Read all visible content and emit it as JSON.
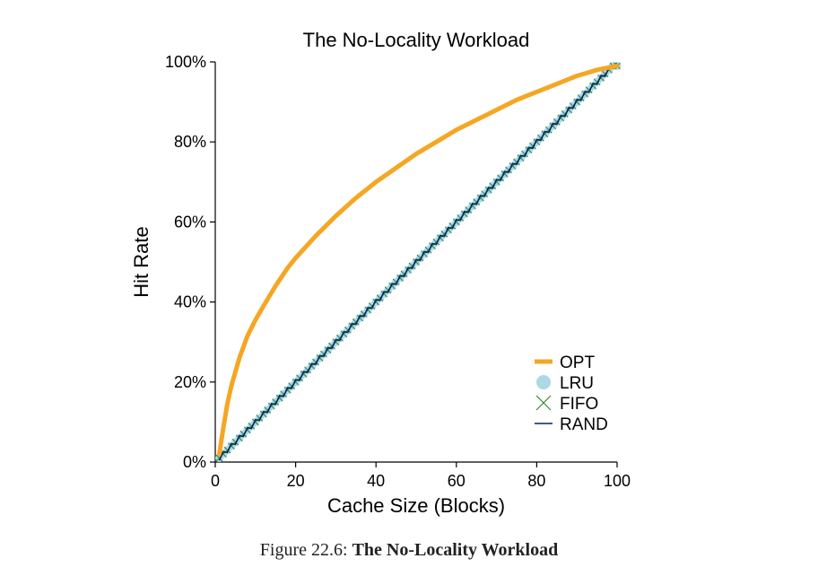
{
  "chart_data": {
    "type": "line",
    "title": "The No-Locality Workload",
    "xlabel": "Cache Size (Blocks)",
    "ylabel": "Hit Rate",
    "xlim": [
      0,
      100
    ],
    "ylim": [
      0,
      100
    ],
    "x_ticks": [
      0,
      20,
      40,
      60,
      80,
      100
    ],
    "x_tick_labels": [
      "0",
      "20",
      "40",
      "60",
      "80",
      "100"
    ],
    "y_ticks": [
      0,
      20,
      40,
      60,
      80,
      100
    ],
    "y_tick_labels": [
      "0%",
      "20%",
      "40%",
      "60%",
      "80%",
      "100%"
    ],
    "legend_position": "bottom-right",
    "x": [
      1,
      2,
      3,
      4,
      5,
      6,
      8,
      10,
      12,
      15,
      18,
      20,
      25,
      30,
      35,
      40,
      45,
      50,
      55,
      60,
      65,
      70,
      75,
      80,
      85,
      90,
      95,
      100
    ],
    "series": [
      {
        "name": "OPT",
        "color": "#F5A623",
        "marker": "thick-line",
        "values": [
          2,
          8.5,
          14.5,
          19,
          22.5,
          26,
          31.5,
          35.5,
          39,
          44,
          48.5,
          51,
          56.5,
          61.5,
          66,
          70,
          73.5,
          77,
          80,
          83,
          85.5,
          88,
          90.5,
          92.5,
          94.5,
          96.5,
          98,
          99
        ]
      },
      {
        "name": "LRU",
        "color": "#ADD8E6",
        "marker": "circle",
        "values": [
          1,
          2,
          3,
          4,
          5,
          6,
          8,
          10,
          12,
          15,
          18,
          20,
          25,
          30,
          35,
          40,
          45,
          50,
          55,
          60,
          65,
          70,
          75,
          80,
          85,
          90,
          95,
          99
        ]
      },
      {
        "name": "FIFO",
        "color": "#2E8B2E",
        "marker": "x",
        "values": [
          1,
          2,
          3,
          4,
          5,
          6,
          8,
          10,
          12,
          15,
          18,
          20,
          25,
          30,
          35,
          40,
          45,
          50,
          55,
          60,
          65,
          70,
          75,
          80,
          85,
          90,
          95,
          99
        ]
      },
      {
        "name": "RAND",
        "color": "#0A1F6B",
        "marker": "line",
        "values": [
          1,
          2,
          3,
          4,
          5,
          6,
          8,
          10,
          12,
          15,
          18,
          20,
          25,
          30,
          35,
          40,
          45,
          50,
          55,
          60,
          65,
          70,
          75,
          80,
          85,
          90,
          95,
          99
        ]
      }
    ]
  },
  "caption": {
    "label": "Figure 22.6:",
    "title": "The No-Locality Workload"
  }
}
